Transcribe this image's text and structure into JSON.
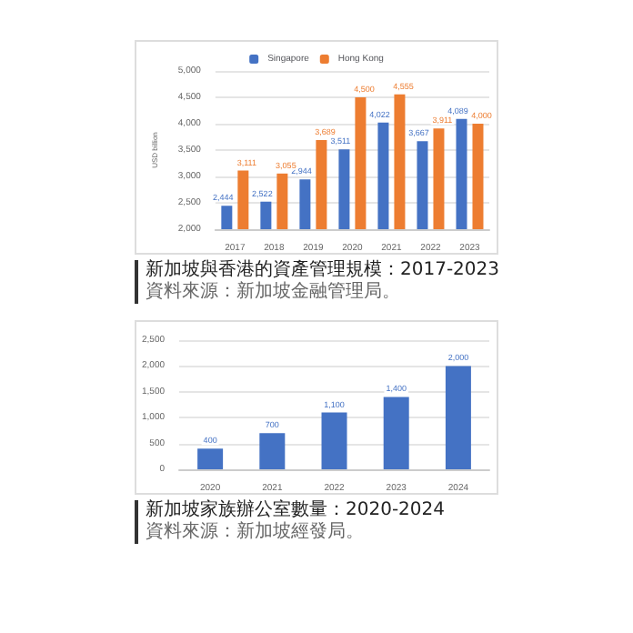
{
  "chart_data": [
    {
      "type": "bar",
      "title": "新加坡與香港的資產管理規模：2017-2023",
      "annotations": [
        "資料來源：新加坡金融管理局。"
      ],
      "ylabel": "USD billion",
      "categories": [
        "2017",
        "2018",
        "2019",
        "2020",
        "2021",
        "2022",
        "2023"
      ],
      "series": [
        {
          "name": "Singapore",
          "color": "#4472c4",
          "values": [
            2444,
            2522,
            2944,
            3511,
            4022,
            3667,
            4089
          ],
          "value_labels": [
            "2,444",
            "2,522",
            "2,944",
            "3,511",
            "4,022",
            "3,667",
            "4,089"
          ]
        },
        {
          "name": "Hong Kong",
          "color": "#ed7d31",
          "values": [
            3111,
            3055,
            3689,
            4500,
            4555,
            3911,
            4000
          ],
          "value_labels": [
            "3,111",
            "3,055",
            "3,689",
            "4,500",
            "4,555",
            "3,911",
            "4,000"
          ]
        }
      ],
      "ylim": [
        2000,
        5000
      ],
      "yticks": [
        {
          "value": 2000,
          "label": "2,000"
        },
        {
          "value": 2500,
          "label": "2,500"
        },
        {
          "value": 3000,
          "label": "3,000"
        },
        {
          "value": 3500,
          "label": "3,500"
        },
        {
          "value": 4000,
          "label": "4,000"
        },
        {
          "value": 4500,
          "label": "4,500"
        },
        {
          "value": 5000,
          "label": "5,000"
        }
      ],
      "grid": "y",
      "legend": "top"
    },
    {
      "type": "bar",
      "title": "新加坡家族辦公室數量：2020-2024",
      "annotations": [
        "資料來源：新加坡經發局。"
      ],
      "categories": [
        "2020",
        "2021",
        "2022",
        "2023",
        "2024"
      ],
      "series": [
        {
          "color": "#4472c4",
          "values": [
            400,
            700,
            1100,
            1400,
            2000
          ],
          "value_labels": [
            "400",
            "700",
            "1,100",
            "1,400",
            "2,000"
          ]
        }
      ],
      "ylim": [
        0,
        2500
      ],
      "yticks": [
        0,
        500,
        {
          "value": 1000,
          "label": "1,000"
        },
        {
          "value": 1500,
          "label": "1,500"
        },
        {
          "value": 2000,
          "label": "2,000"
        },
        {
          "value": 2500,
          "label": "2,500"
        }
      ],
      "grid": "y"
    }
  ]
}
